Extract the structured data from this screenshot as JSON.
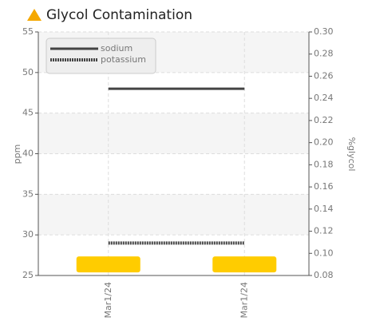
{
  "chart_data": {
    "type": "line",
    "title": "Glycol Contamination",
    "y_label": "ppm",
    "y2_label": "%glycol",
    "categories": [
      "Mar1/24",
      "Mar1/24"
    ],
    "series": [
      {
        "name": "sodium",
        "color": "#444444",
        "style": "solid",
        "values": [
          48,
          48
        ]
      },
      {
        "name": "potassium",
        "color": "#444444",
        "style": "dotted",
        "values": [
          29,
          29
        ]
      },
      {
        "color": "#ffcc00",
        "axis": "y2",
        "style": "marker",
        "values": [
          0.09,
          0.09
        ]
      }
    ],
    "ylim": [
      25,
      55
    ],
    "yticks": [
      25,
      30,
      35,
      40,
      45,
      50,
      55
    ],
    "y2lim": [
      0.08,
      0.3
    ],
    "y2ticks": [
      0.08,
      {
        "value": 0.1,
        "label": "0.10"
      },
      0.12,
      0.14,
      0.16,
      0.18,
      {
        "value": 0.2,
        "label": "0.20"
      },
      0.22,
      0.24,
      0.26,
      0.28,
      {
        "value": 0.3,
        "label": "0.30"
      }
    ],
    "grid": true,
    "legend": "top-left"
  }
}
